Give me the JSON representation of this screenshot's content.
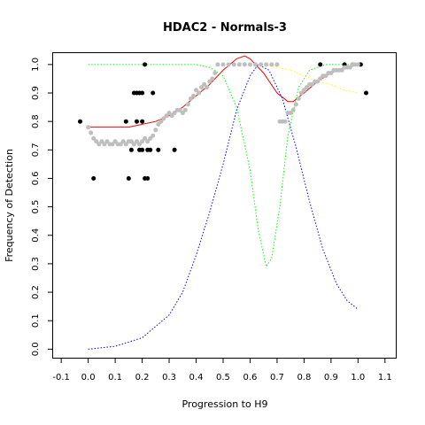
{
  "chart_data": {
    "type": "scatter",
    "title": "HDAC2 - Normals-3",
    "xlabel": "Progression to H9",
    "ylabel": "Frequency of Detection",
    "xlim": [
      -0.13,
      1.14
    ],
    "ylim": [
      -0.03,
      1.04
    ],
    "x_ticks": [
      "-0.1",
      "0.0",
      "0.1",
      "0.2",
      "0.3",
      "0.4",
      "0.5",
      "0.6",
      "0.7",
      "0.8",
      "0.9",
      "1.0",
      "1.1"
    ],
    "y_ticks": [
      "0.0",
      "0.1",
      "0.2",
      "0.3",
      "0.4",
      "0.5",
      "0.6",
      "0.7",
      "0.8",
      "0.9",
      "1.0"
    ],
    "grid": false,
    "legend": false,
    "series": [
      {
        "kind": "points",
        "color": "#000000",
        "points": [
          [
            -0.03,
            0.8
          ],
          [
            0.02,
            0.6
          ],
          [
            0.14,
            0.8
          ],
          [
            0.15,
            0.6
          ],
          [
            0.16,
            0.7
          ],
          [
            0.17,
            0.9
          ],
          [
            0.18,
            0.9
          ],
          [
            0.18,
            0.8
          ],
          [
            0.19,
            0.9
          ],
          [
            0.19,
            0.7
          ],
          [
            0.2,
            0.8
          ],
          [
            0.2,
            0.9
          ],
          [
            0.2,
            0.7
          ],
          [
            0.21,
            0.6
          ],
          [
            0.21,
            1.0
          ],
          [
            0.22,
            0.6
          ],
          [
            0.22,
            0.7
          ],
          [
            0.23,
            0.7
          ],
          [
            0.24,
            0.9
          ],
          [
            0.26,
            0.7
          ],
          [
            0.32,
            0.7
          ],
          [
            0.86,
            1.0
          ],
          [
            0.95,
            1.0
          ],
          [
            0.98,
            1.0
          ],
          [
            1.01,
            1.0
          ],
          [
            1.03,
            0.9
          ]
        ]
      },
      {
        "kind": "points",
        "color": "#bebebe",
        "points": [
          [
            0.0,
            0.78
          ],
          [
            0.01,
            0.76
          ],
          [
            0.02,
            0.74
          ],
          [
            0.03,
            0.73
          ],
          [
            0.04,
            0.72
          ],
          [
            0.05,
            0.73
          ],
          [
            0.06,
            0.72
          ],
          [
            0.07,
            0.73
          ],
          [
            0.08,
            0.72
          ],
          [
            0.09,
            0.72
          ],
          [
            0.1,
            0.73
          ],
          [
            0.11,
            0.72
          ],
          [
            0.12,
            0.72
          ],
          [
            0.13,
            0.73
          ],
          [
            0.14,
            0.72
          ],
          [
            0.15,
            0.73
          ],
          [
            0.16,
            0.73
          ],
          [
            0.17,
            0.72
          ],
          [
            0.18,
            0.73
          ],
          [
            0.19,
            0.72
          ],
          [
            0.2,
            0.73
          ],
          [
            0.21,
            0.74
          ],
          [
            0.22,
            0.73
          ],
          [
            0.23,
            0.74
          ],
          [
            0.24,
            0.75
          ],
          [
            0.25,
            0.77
          ],
          [
            0.26,
            0.79
          ],
          [
            0.27,
            0.8
          ],
          [
            0.28,
            0.81
          ],
          [
            0.29,
            0.82
          ],
          [
            0.3,
            0.83
          ],
          [
            0.31,
            0.82
          ],
          [
            0.32,
            0.83
          ],
          [
            0.33,
            0.84
          ],
          [
            0.34,
            0.84
          ],
          [
            0.35,
            0.83
          ],
          [
            0.36,
            0.84
          ],
          [
            0.37,
            0.86
          ],
          [
            0.38,
            0.88
          ],
          [
            0.39,
            0.89
          ],
          [
            0.4,
            0.91
          ],
          [
            0.41,
            0.9
          ],
          [
            0.42,
            0.92
          ],
          [
            0.43,
            0.93
          ],
          [
            0.44,
            0.92
          ],
          [
            0.45,
            0.94
          ],
          [
            0.46,
            0.95
          ],
          [
            0.47,
            0.97
          ],
          [
            0.48,
            1.0
          ],
          [
            0.5,
            1.0
          ],
          [
            0.52,
            1.0
          ],
          [
            0.54,
            1.0
          ],
          [
            0.56,
            1.0
          ],
          [
            0.58,
            1.0
          ],
          [
            0.6,
            1.0
          ],
          [
            0.62,
            1.0
          ],
          [
            0.64,
            1.0
          ],
          [
            0.66,
            1.0
          ],
          [
            0.68,
            1.0
          ],
          [
            0.7,
            1.0
          ],
          [
            0.71,
            0.8
          ],
          [
            0.72,
            0.8
          ],
          [
            0.73,
            0.8
          ],
          [
            0.74,
            0.83
          ],
          [
            0.75,
            0.83
          ],
          [
            0.76,
            0.84
          ],
          [
            0.77,
            0.86
          ],
          [
            0.78,
            0.88
          ],
          [
            0.79,
            0.9
          ],
          [
            0.8,
            0.91
          ],
          [
            0.81,
            0.92
          ],
          [
            0.82,
            0.93
          ],
          [
            0.83,
            0.93
          ],
          [
            0.84,
            0.94
          ],
          [
            0.85,
            0.94
          ],
          [
            0.86,
            0.95
          ],
          [
            0.87,
            0.96
          ],
          [
            0.88,
            0.96
          ],
          [
            0.89,
            0.97
          ],
          [
            0.9,
            0.97
          ],
          [
            0.91,
            0.98
          ],
          [
            0.92,
            0.98
          ],
          [
            0.93,
            0.98
          ],
          [
            0.94,
            0.98
          ],
          [
            0.95,
            0.99
          ],
          [
            0.96,
            0.99
          ],
          [
            0.97,
            0.99
          ],
          [
            0.98,
            1.0
          ],
          [
            0.99,
            1.0
          ],
          [
            1.0,
            1.0
          ]
        ]
      },
      {
        "kind": "line",
        "color": "#ff0000",
        "style": "solid",
        "points": [
          [
            0.0,
            0.78
          ],
          [
            0.05,
            0.78
          ],
          [
            0.1,
            0.78
          ],
          [
            0.15,
            0.78
          ],
          [
            0.2,
            0.79
          ],
          [
            0.25,
            0.8
          ],
          [
            0.3,
            0.82
          ],
          [
            0.35,
            0.85
          ],
          [
            0.4,
            0.89
          ],
          [
            0.45,
            0.93
          ],
          [
            0.5,
            0.98
          ],
          [
            0.55,
            1.02
          ],
          [
            0.58,
            1.03
          ],
          [
            0.6,
            1.02
          ],
          [
            0.65,
            0.97
          ],
          [
            0.7,
            0.9
          ],
          [
            0.74,
            0.87
          ],
          [
            0.76,
            0.87
          ],
          [
            0.8,
            0.9
          ],
          [
            0.85,
            0.94
          ],
          [
            0.9,
            0.97
          ],
          [
            0.95,
            0.99
          ],
          [
            1.0,
            1.0
          ]
        ]
      },
      {
        "kind": "line",
        "color": "#00ff00",
        "style": "dotted",
        "points": [
          [
            0.0,
            1.0
          ],
          [
            0.1,
            1.0
          ],
          [
            0.2,
            1.0
          ],
          [
            0.3,
            1.0
          ],
          [
            0.4,
            1.0
          ],
          [
            0.45,
            0.99
          ],
          [
            0.5,
            0.96
          ],
          [
            0.55,
            0.85
          ],
          [
            0.6,
            0.63
          ],
          [
            0.63,
            0.42
          ],
          [
            0.66,
            0.29
          ],
          [
            0.68,
            0.32
          ],
          [
            0.71,
            0.5
          ],
          [
            0.74,
            0.75
          ],
          [
            0.78,
            0.92
          ],
          [
            0.82,
            0.98
          ],
          [
            0.88,
            1.0
          ],
          [
            1.0,
            1.0
          ]
        ]
      },
      {
        "kind": "line",
        "color": "#0000ff",
        "style": "dotted",
        "points": [
          [
            0.0,
            0.0
          ],
          [
            0.1,
            0.01
          ],
          [
            0.2,
            0.04
          ],
          [
            0.3,
            0.12
          ],
          [
            0.35,
            0.2
          ],
          [
            0.4,
            0.33
          ],
          [
            0.45,
            0.48
          ],
          [
            0.5,
            0.65
          ],
          [
            0.55,
            0.84
          ],
          [
            0.6,
            0.96
          ],
          [
            0.63,
            1.0
          ],
          [
            0.67,
            0.98
          ],
          [
            0.72,
            0.88
          ],
          [
            0.77,
            0.71
          ],
          [
            0.82,
            0.52
          ],
          [
            0.87,
            0.35
          ],
          [
            0.92,
            0.23
          ],
          [
            0.96,
            0.17
          ],
          [
            1.0,
            0.14
          ]
        ]
      },
      {
        "kind": "line",
        "color": "#ffff00",
        "style": "dotted",
        "points": [
          [
            0.65,
            1.0
          ],
          [
            0.7,
            0.99
          ],
          [
            0.75,
            0.98
          ],
          [
            0.8,
            0.96
          ],
          [
            0.85,
            0.94
          ],
          [
            0.9,
            0.93
          ],
          [
            0.95,
            0.91
          ],
          [
            1.0,
            0.9
          ]
        ]
      }
    ]
  }
}
